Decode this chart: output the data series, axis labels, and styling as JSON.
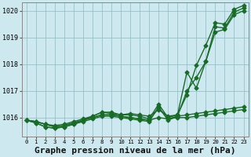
{
  "title": "Graphe pression niveau de la mer (hPa)",
  "xlim": [
    -0.5,
    23.5
  ],
  "ylim": [
    1015.3,
    1020.3
  ],
  "yticks": [
    1016,
    1017,
    1018,
    1019,
    1020
  ],
  "xticks": [
    0,
    1,
    2,
    3,
    4,
    5,
    6,
    7,
    8,
    9,
    10,
    11,
    12,
    13,
    14,
    15,
    16,
    17,
    18,
    19,
    20,
    21,
    22,
    23
  ],
  "background_color": "#cde8ee",
  "grid_color": "#9bbfc8",
  "line_color": "#1a6b2a",
  "line1": [
    1015.9,
    1015.85,
    1015.75,
    1015.65,
    1015.7,
    1015.8,
    1015.9,
    1016.0,
    1016.1,
    1016.1,
    1016.05,
    1016.0,
    1015.95,
    1015.9,
    1016.0,
    1015.95,
    1016.0,
    1016.0,
    1016.05,
    1016.1,
    1016.15,
    1016.2,
    1016.25,
    1016.3
  ],
  "line2": [
    1015.9,
    1015.8,
    1015.65,
    1015.6,
    1015.65,
    1015.75,
    1015.85,
    1015.95,
    1016.05,
    1016.05,
    1016.0,
    1015.95,
    1015.9,
    1015.85,
    1016.4,
    1015.9,
    1016.05,
    1016.1,
    1016.15,
    1016.2,
    1016.25,
    1016.3,
    1016.35,
    1016.4
  ],
  "line3": [
    1015.9,
    1015.85,
    1015.75,
    1015.7,
    1015.75,
    1015.85,
    1015.95,
    1016.05,
    1016.2,
    1016.15,
    1016.1,
    1016.15,
    1016.1,
    1016.05,
    1016.3,
    1016.05,
    1016.1,
    1017.7,
    1017.1,
    1018.1,
    1019.4,
    1019.35,
    1019.95,
    1020.1
  ],
  "line4": [
    1015.9,
    1015.85,
    1015.75,
    1015.65,
    1015.7,
    1015.8,
    1015.9,
    1016.0,
    1016.1,
    1016.1,
    1016.05,
    1016.0,
    1015.95,
    1015.9,
    1016.35,
    1015.95,
    1016.05,
    1017.0,
    1017.5,
    1018.1,
    1019.2,
    1019.3,
    1019.85,
    1020.0
  ],
  "line5": [
    1015.9,
    1015.8,
    1015.65,
    1015.6,
    1015.65,
    1015.75,
    1015.9,
    1016.05,
    1016.2,
    1016.2,
    1016.1,
    1016.1,
    1016.05,
    1015.95,
    1016.5,
    1016.0,
    1016.1,
    1016.85,
    1017.95,
    1018.7,
    1019.55,
    1019.5,
    1020.05,
    1020.2
  ],
  "marker_size": 2.5,
  "line_width": 1.0,
  "title_fontsize": 8,
  "tick_fontsize": 6
}
